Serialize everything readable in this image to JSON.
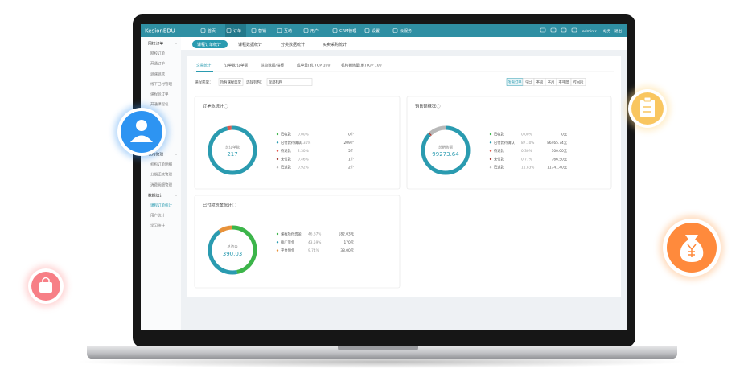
{
  "header": {
    "logo": "KesionEDU",
    "nav": [
      "首页",
      "订单",
      "营销",
      "互动",
      "用户",
      "CRM管理",
      "设置",
      "云服务"
    ],
    "user": "admin ▾",
    "links": [
      "站务",
      "退出"
    ]
  },
  "sidebar": [
    {
      "title": "网校订单",
      "items": [
        "网校订单",
        "开通订单",
        "退课退款",
        "线下已付管理",
        "课程包订单",
        "开通课程包"
      ]
    },
    {
      "title": "机构管理",
      "items": [
        "机构订单明细",
        "分期还款管理",
        "消费明细管理"
      ]
    },
    {
      "title": "数据统计",
      "items": [
        "课程订单统计",
        "用户统计",
        "学习统计"
      ]
    }
  ],
  "tabs": [
    "课程订单统计",
    "课程数据统计",
    "分类数据统计",
    "买卖采购统计"
  ],
  "subtabs": [
    "交易统计",
    "订单数/订单额",
    "综合数据/指标",
    "成单量(前)TOP 100",
    "机构销售量(前)TOP 100"
  ],
  "filters": [
    {
      "label": "课程类型：",
      "value": "所有课程类型"
    },
    {
      "label": "选择机构：",
      "value": "全部机构"
    }
  ],
  "time_buttons": [
    "所有订单",
    "今日",
    "本周",
    "本月",
    "本年度",
    "时间段"
  ],
  "cards": [
    {
      "title": "订单数统计",
      "center_label": "总订单数",
      "center_value": 217,
      "items": [
        {
          "name": "已收款",
          "color": "#3cb54a",
          "percent": {
            "value": 0,
            "label": "0.00%"
          },
          "amount": "0个"
        },
        {
          "name": "已付款待确认",
          "color": "#2a9bb0",
          "percent": {
            "value": 96.31,
            "label": "96.31%"
          },
          "amount": "209个"
        },
        {
          "name": "待退款",
          "color": "#e2574c",
          "percent": {
            "value": 2.3,
            "label": "2.30%"
          },
          "amount": "5个"
        },
        {
          "name": "未付款",
          "color": "#a33a32",
          "percent": {
            "value": 0.46,
            "label": "0.46%"
          },
          "amount": "1个"
        },
        {
          "name": "已退款",
          "color": "#b8b8b8",
          "percent": {
            "value": 0.92,
            "label": "0.92%"
          },
          "amount": "2个"
        }
      ]
    },
    {
      "title": "销售额概况",
      "center_label": "总销售额",
      "center_value": 99273.64,
      "items": [
        {
          "name": "已收款",
          "color": "#3cb54a",
          "percent": {
            "value": 0,
            "label": "0.00%"
          },
          "amount": "0元"
        },
        {
          "name": "已付款待确认",
          "color": "#2a9bb0",
          "percent": {
            "value": 87.1,
            "label": "87.10%"
          },
          "amount": "86465.74元"
        },
        {
          "name": "待退款",
          "color": "#e2574c",
          "percent": {
            "value": 0.3,
            "label": "0.30%"
          },
          "amount": "300.00元"
        },
        {
          "name": "未付款",
          "color": "#a33a32",
          "percent": {
            "value": 0.77,
            "label": "0.77%"
          },
          "amount": "766.50元"
        },
        {
          "name": "已退款",
          "color": "#b8b8b8",
          "percent": {
            "value": 11.83,
            "label": "11.83%"
          },
          "amount": "11741.40元"
        }
      ]
    },
    {
      "title": "已付款资金统计",
      "center_label": "总资金",
      "center_value": 390.03,
      "items": [
        {
          "name": "课程所得资金",
          "color": "#3cb54a",
          "percent": {
            "value": 46.67,
            "label": "46.67%"
          },
          "amount": "182.03元"
        },
        {
          "name": "推广资金",
          "color": "#2a9bb0",
          "percent": {
            "value": 43.59,
            "label": "43.59%"
          },
          "amount": "170元"
        },
        {
          "name": "平台佣金",
          "color": "#e8923a",
          "percent": {
            "value": 9.74,
            "label": "9.74%"
          },
          "amount": "38.00元"
        }
      ]
    }
  ]
}
